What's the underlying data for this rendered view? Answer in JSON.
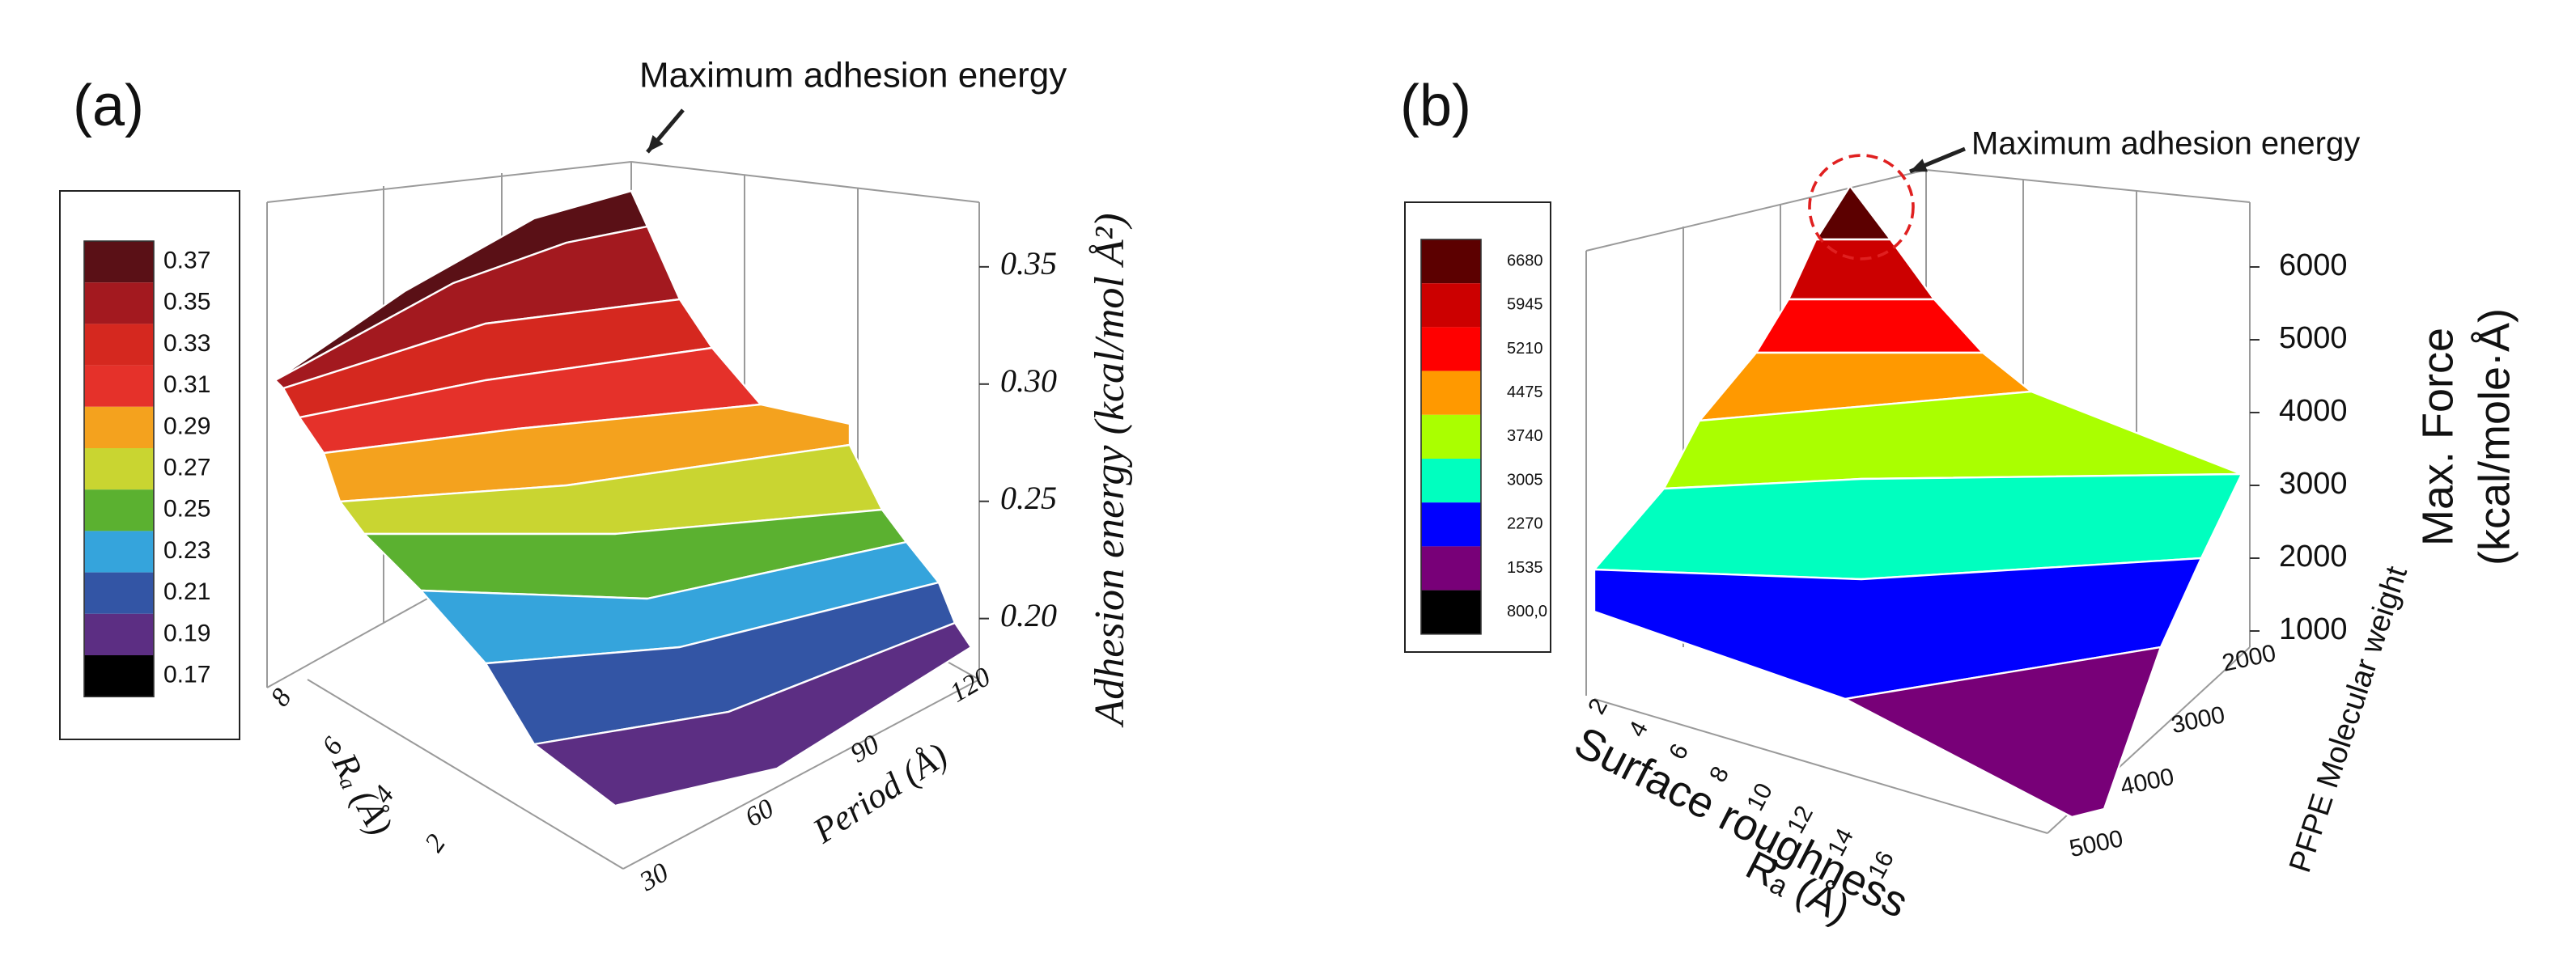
{
  "chart_data": [
    {
      "type": "surface",
      "panel_label": "(a)",
      "annotation": "Maximum adhesion energy",
      "colorbar": {
        "levels": [
          0.37,
          0.35,
          0.33,
          0.31,
          0.29,
          0.27,
          0.25,
          0.23,
          0.21,
          0.19,
          0.17
        ],
        "colors": [
          "#5a1016",
          "#a3191f",
          "#d5281f",
          "#e5312a",
          "#f4a21e",
          "#c9d531",
          "#5bb130",
          "#35a4dc",
          "#3355a5",
          "#5c2e83",
          "#000000"
        ]
      },
      "zlabel": "Adhesion energy (kcal/mol Å²)",
      "zlim": [
        0.174,
        0.381
      ],
      "zticks": [
        {
          "value": 0.2,
          "label": "0.20"
        },
        0.25,
        {
          "value": 0.3,
          "label": "0.30"
        },
        0.35
      ],
      "xlabel": "Rₐ (Å)",
      "xlim": [
        1,
        9
      ],
      "xticks": [
        2,
        4,
        6,
        8
      ],
      "ylabel": "Period (Å)",
      "ylim": [
        25,
        125
      ],
      "yticks": [
        30,
        60,
        90,
        120
      ]
    },
    {
      "type": "surface",
      "panel_label": "(b)",
      "annotation": "Maximum adhesion energy",
      "colorbar": {
        "levels": [
          6680,
          5945,
          5210,
          4475,
          3740,
          3005,
          2270,
          1535,
          {
            "value": 800,
            "label": "800,0"
          }
        ],
        "colors": [
          "#5c0000",
          "#cc0000",
          "#ff0000",
          "#ff9900",
          "#aaff00",
          "#00ffbf",
          "#0000ff",
          "#780078",
          "#000000"
        ]
      },
      "zlabel": [
        "Max. Force",
        "(kcal/mole·Å)"
      ],
      "zlim": [
        700,
        6900
      ],
      "zticks": [
        1000,
        2000,
        3000,
        4000,
        5000,
        6000
      ],
      "xlabel": [
        "Surface roughness",
        "Rₐ (Å)"
      ],
      "xlim": [
        1,
        17
      ],
      "xticks": [
        2,
        4,
        6,
        8,
        10,
        12,
        14,
        16
      ],
      "ylabel": "PFPE Molecular weight",
      "ylim": [
        1800,
        5200
      ],
      "yticks": [
        2000,
        3000,
        4000,
        5000
      ]
    }
  ]
}
